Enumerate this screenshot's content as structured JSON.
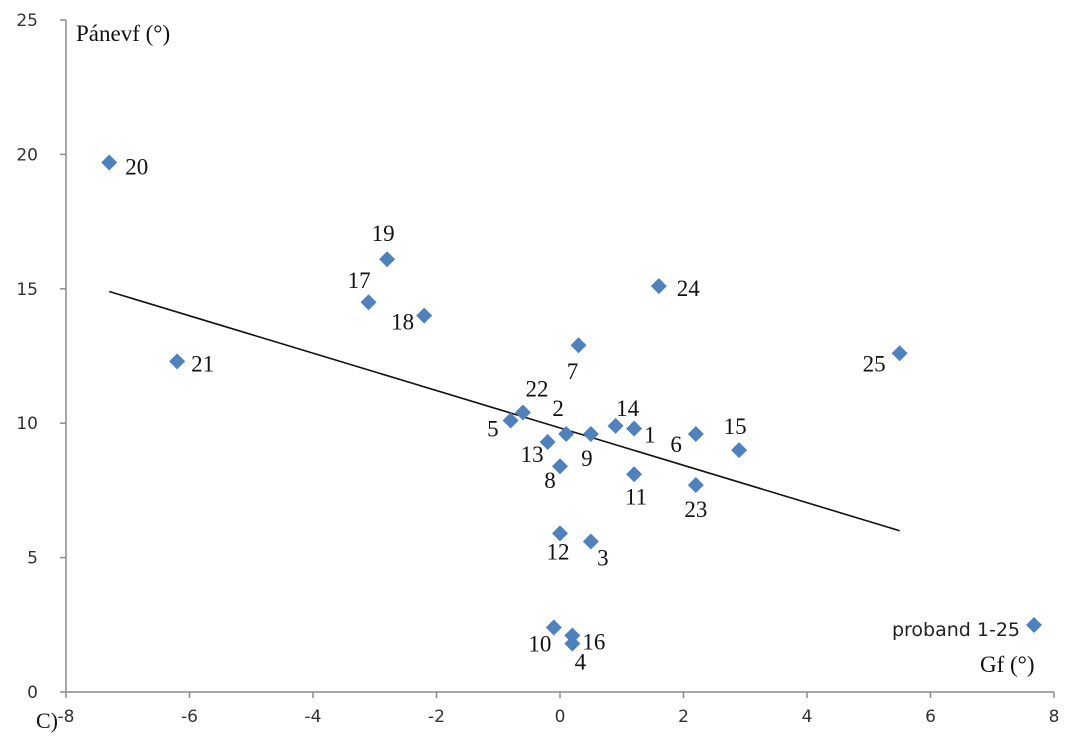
{
  "chart_data": {
    "type": "scatter",
    "panel_label": "C)",
    "ylabel": "Pánevf (°)",
    "xlabel": "Gf (°)",
    "xlim": [
      -8,
      8
    ],
    "ylim": [
      0,
      25
    ],
    "x_ticks": [
      "-8",
      "-6",
      "-4",
      "-2",
      "0",
      "2",
      "4",
      "6",
      "8"
    ],
    "y_ticks": [
      "0",
      "5",
      "10",
      "15",
      "20",
      "25"
    ],
    "marker_color": "#4F81BD",
    "legend": {
      "label": "proband 1-25",
      "position": "bottom-right"
    },
    "trendline": {
      "x": [
        -7.3,
        5.5
      ],
      "y": [
        14.9,
        6.0
      ]
    },
    "points": [
      {
        "label": "1",
        "x": 1.2,
        "y": 9.8
      },
      {
        "label": "2",
        "x": 0.1,
        "y": 9.6
      },
      {
        "label": "3",
        "x": 0.5,
        "y": 5.6
      },
      {
        "label": "4",
        "x": 0.2,
        "y": 1.8
      },
      {
        "label": "5",
        "x": -0.8,
        "y": 10.1
      },
      {
        "label": "6",
        "x": 2.2,
        "y": 9.6
      },
      {
        "label": "7",
        "x": 0.3,
        "y": 12.9
      },
      {
        "label": "8",
        "x": 0.0,
        "y": 8.4
      },
      {
        "label": "9",
        "x": 0.5,
        "y": 9.6
      },
      {
        "label": "10",
        "x": -0.1,
        "y": 2.4
      },
      {
        "label": "11",
        "x": 1.2,
        "y": 8.1
      },
      {
        "label": "12",
        "x": 0.0,
        "y": 5.9
      },
      {
        "label": "13",
        "x": -0.2,
        "y": 9.3
      },
      {
        "label": "14",
        "x": 0.9,
        "y": 9.9
      },
      {
        "label": "15",
        "x": 2.9,
        "y": 9.0
      },
      {
        "label": "16",
        "x": 0.2,
        "y": 2.1
      },
      {
        "label": "17",
        "x": -3.1,
        "y": 14.5
      },
      {
        "label": "18",
        "x": -2.2,
        "y": 14.0
      },
      {
        "label": "19",
        "x": -2.8,
        "y": 16.1
      },
      {
        "label": "20",
        "x": -7.3,
        "y": 19.7
      },
      {
        "label": "21",
        "x": -6.2,
        "y": 12.3
      },
      {
        "label": "22",
        "x": -0.6,
        "y": 10.4
      },
      {
        "label": "23",
        "x": 2.2,
        "y": 7.7
      },
      {
        "label": "24",
        "x": 1.6,
        "y": 15.1
      },
      {
        "label": "25",
        "x": 5.5,
        "y": 12.6
      }
    ]
  }
}
